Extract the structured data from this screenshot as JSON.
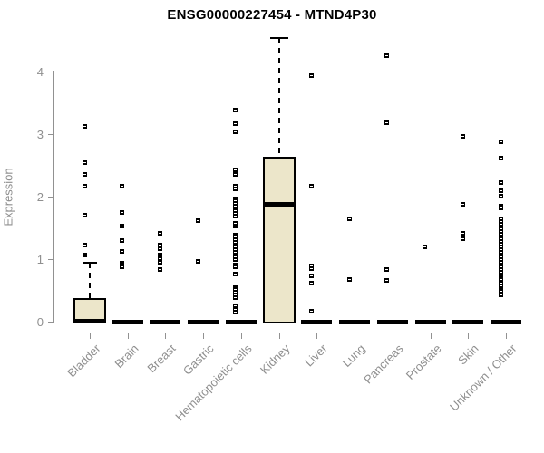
{
  "page": {
    "background": "#ffffff"
  },
  "chart_data": {
    "type": "boxplot",
    "title": "ENSG00000227454 - MTND4P30",
    "ylabel": "Expression",
    "ylim": [
      0,
      4.6
    ],
    "yticks": [
      "0",
      "1",
      "2",
      "3",
      "4"
    ],
    "grid": false,
    "legend": null,
    "categories": [
      "Bladder",
      "Brain",
      "Breast",
      "Gastric",
      "Hematopoietic cells",
      "Kidney",
      "Liver",
      "Lung",
      "Pancreas",
      "Prostate",
      "Skin",
      "Unknown / Other"
    ],
    "series": [
      {
        "category": "Bladder",
        "q1": 0,
        "median": 0.02,
        "q3": 0.37,
        "whisker_low": 0,
        "whisker_high": 0.94,
        "outliers": [
          3.12,
          2.55,
          2.36,
          2.17,
          1.71,
          1.23,
          1.06
        ]
      },
      {
        "category": "Brain",
        "q1": 0,
        "median": 0,
        "q3": 0,
        "whisker_low": 0,
        "whisker_high": 0,
        "outliers": [
          2.16,
          1.75,
          1.53,
          1.3,
          1.12,
          0.94,
          0.9,
          0.87
        ]
      },
      {
        "category": "Breast",
        "q1": 0,
        "median": 0,
        "q3": 0,
        "whisker_low": 0,
        "whisker_high": 0,
        "outliers": [
          1.42,
          1.23,
          1.17,
          1.06,
          1.01,
          0.95,
          0.83
        ]
      },
      {
        "category": "Gastric",
        "q1": 0,
        "median": 0,
        "q3": 0,
        "whisker_low": 0,
        "whisker_high": 0,
        "outliers": [
          1.61,
          0.97
        ]
      },
      {
        "category": "Hematopoietic cells",
        "q1": 0,
        "median": 0,
        "q3": 0,
        "whisker_low": 0,
        "whisker_high": 0,
        "outliers": [
          3.38,
          3.17,
          3.04,
          2.43,
          2.35,
          2.16,
          2.13,
          1.97,
          1.93,
          1.89,
          1.85,
          1.81,
          1.77,
          1.73,
          1.69,
          1.57,
          1.53,
          1.39,
          1.35,
          1.31,
          1.27,
          1.23,
          1.19,
          1.15,
          1.11,
          1.07,
          1.03,
          0.99,
          0.91,
          0.87,
          0.76,
          0.55,
          0.51,
          0.47,
          0.43,
          0.39,
          0.25,
          0.2,
          0.15
        ]
      },
      {
        "category": "Kidney",
        "q1": 0,
        "median": 1.88,
        "q3": 2.64,
        "whisker_low": 0,
        "whisker_high": 4.54,
        "outliers": []
      },
      {
        "category": "Liver",
        "q1": 0,
        "median": 0,
        "q3": 0,
        "whisker_low": 0,
        "whisker_high": 0,
        "outliers": [
          3.94,
          2.16,
          0.89,
          0.85,
          0.73,
          0.62,
          0.17
        ]
      },
      {
        "category": "Lung",
        "q1": 0,
        "median": 0,
        "q3": 0,
        "whisker_low": 0,
        "whisker_high": 0,
        "outliers": [
          1.64,
          0.68
        ]
      },
      {
        "category": "Pancreas",
        "q1": 0,
        "median": 0,
        "q3": 0,
        "whisker_low": 0,
        "whisker_high": 0,
        "outliers": [
          4.25,
          3.18,
          0.83,
          0.66
        ]
      },
      {
        "category": "Prostate",
        "q1": 0,
        "median": 0,
        "q3": 0,
        "whisker_low": 0,
        "whisker_high": 0,
        "outliers": [
          1.19
        ]
      },
      {
        "category": "Skin",
        "q1": 0,
        "median": 0,
        "q3": 0,
        "whisker_low": 0,
        "whisker_high": 0,
        "outliers": [
          2.96,
          1.87,
          1.42,
          1.33
        ]
      },
      {
        "category": "Unknown / Other",
        "q1": 0,
        "median": 0,
        "q3": 0,
        "whisker_low": 0,
        "whisker_high": 0,
        "outliers": [
          2.87,
          2.61,
          2.22,
          2.1,
          2.01,
          1.85,
          1.82,
          1.64,
          1.6,
          1.56,
          1.52,
          1.48,
          1.44,
          1.4,
          1.36,
          1.32,
          1.28,
          1.24,
          1.19,
          1.15,
          1.11,
          1.07,
          1.03,
          0.99,
          0.95,
          0.91,
          0.87,
          0.83,
          0.79,
          0.75,
          0.71,
          0.67,
          0.62,
          0.57,
          0.52,
          0.48,
          0.43
        ]
      }
    ],
    "colors": {
      "box_fill": "#ece6ca",
      "box_border": "#000000",
      "median": "#000000",
      "outlier": "#000000",
      "axis": "#919191",
      "tick_text": "#8f8f8f",
      "title_text": "#000000"
    }
  }
}
